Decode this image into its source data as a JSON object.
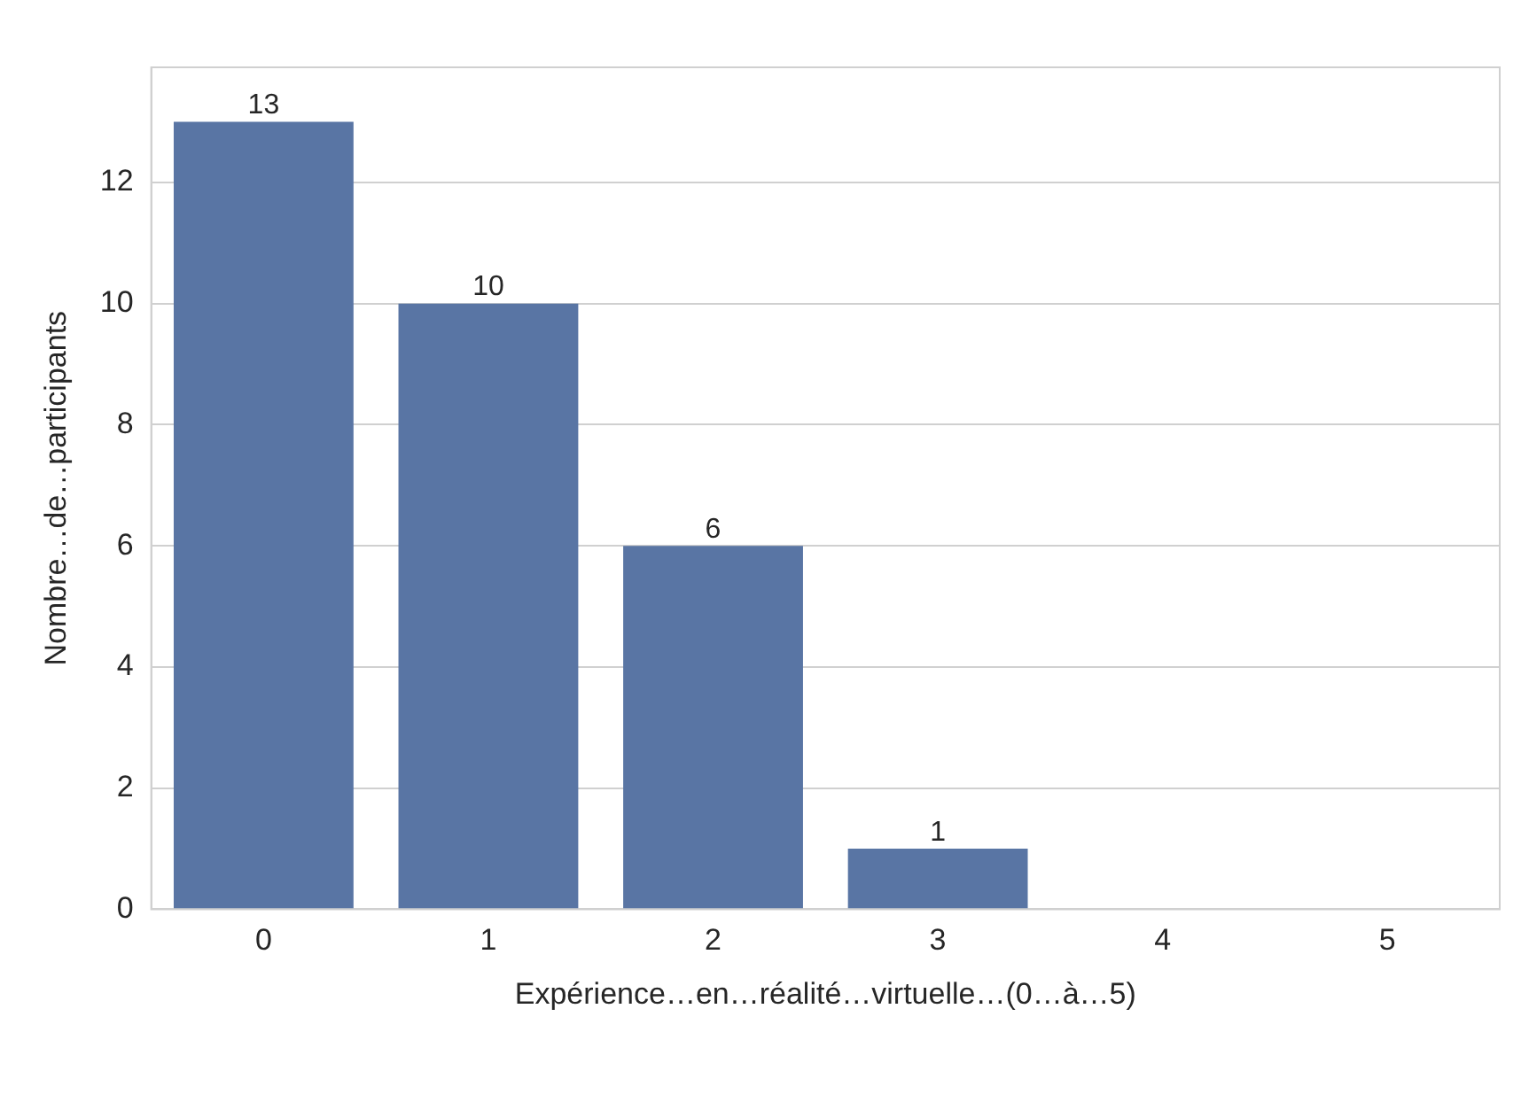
{
  "chart_data": {
    "type": "bar",
    "xlabel": "Expérience…en…réalité…virtuelle…(0…à…5)",
    "ylabel": "Nombre…de…participants",
    "categories": [
      "0",
      "1",
      "2",
      "3",
      "4",
      "5"
    ],
    "values": [
      13,
      10,
      6,
      1,
      0,
      0
    ],
    "value_labels": [
      "13",
      "10",
      "6",
      "1",
      null,
      null
    ],
    "color": "#5975a4",
    "ylim": [
      0,
      13.9
    ],
    "yticks": [
      0,
      2,
      4,
      6,
      8,
      10,
      12
    ],
    "grid": "y",
    "legend": false
  }
}
